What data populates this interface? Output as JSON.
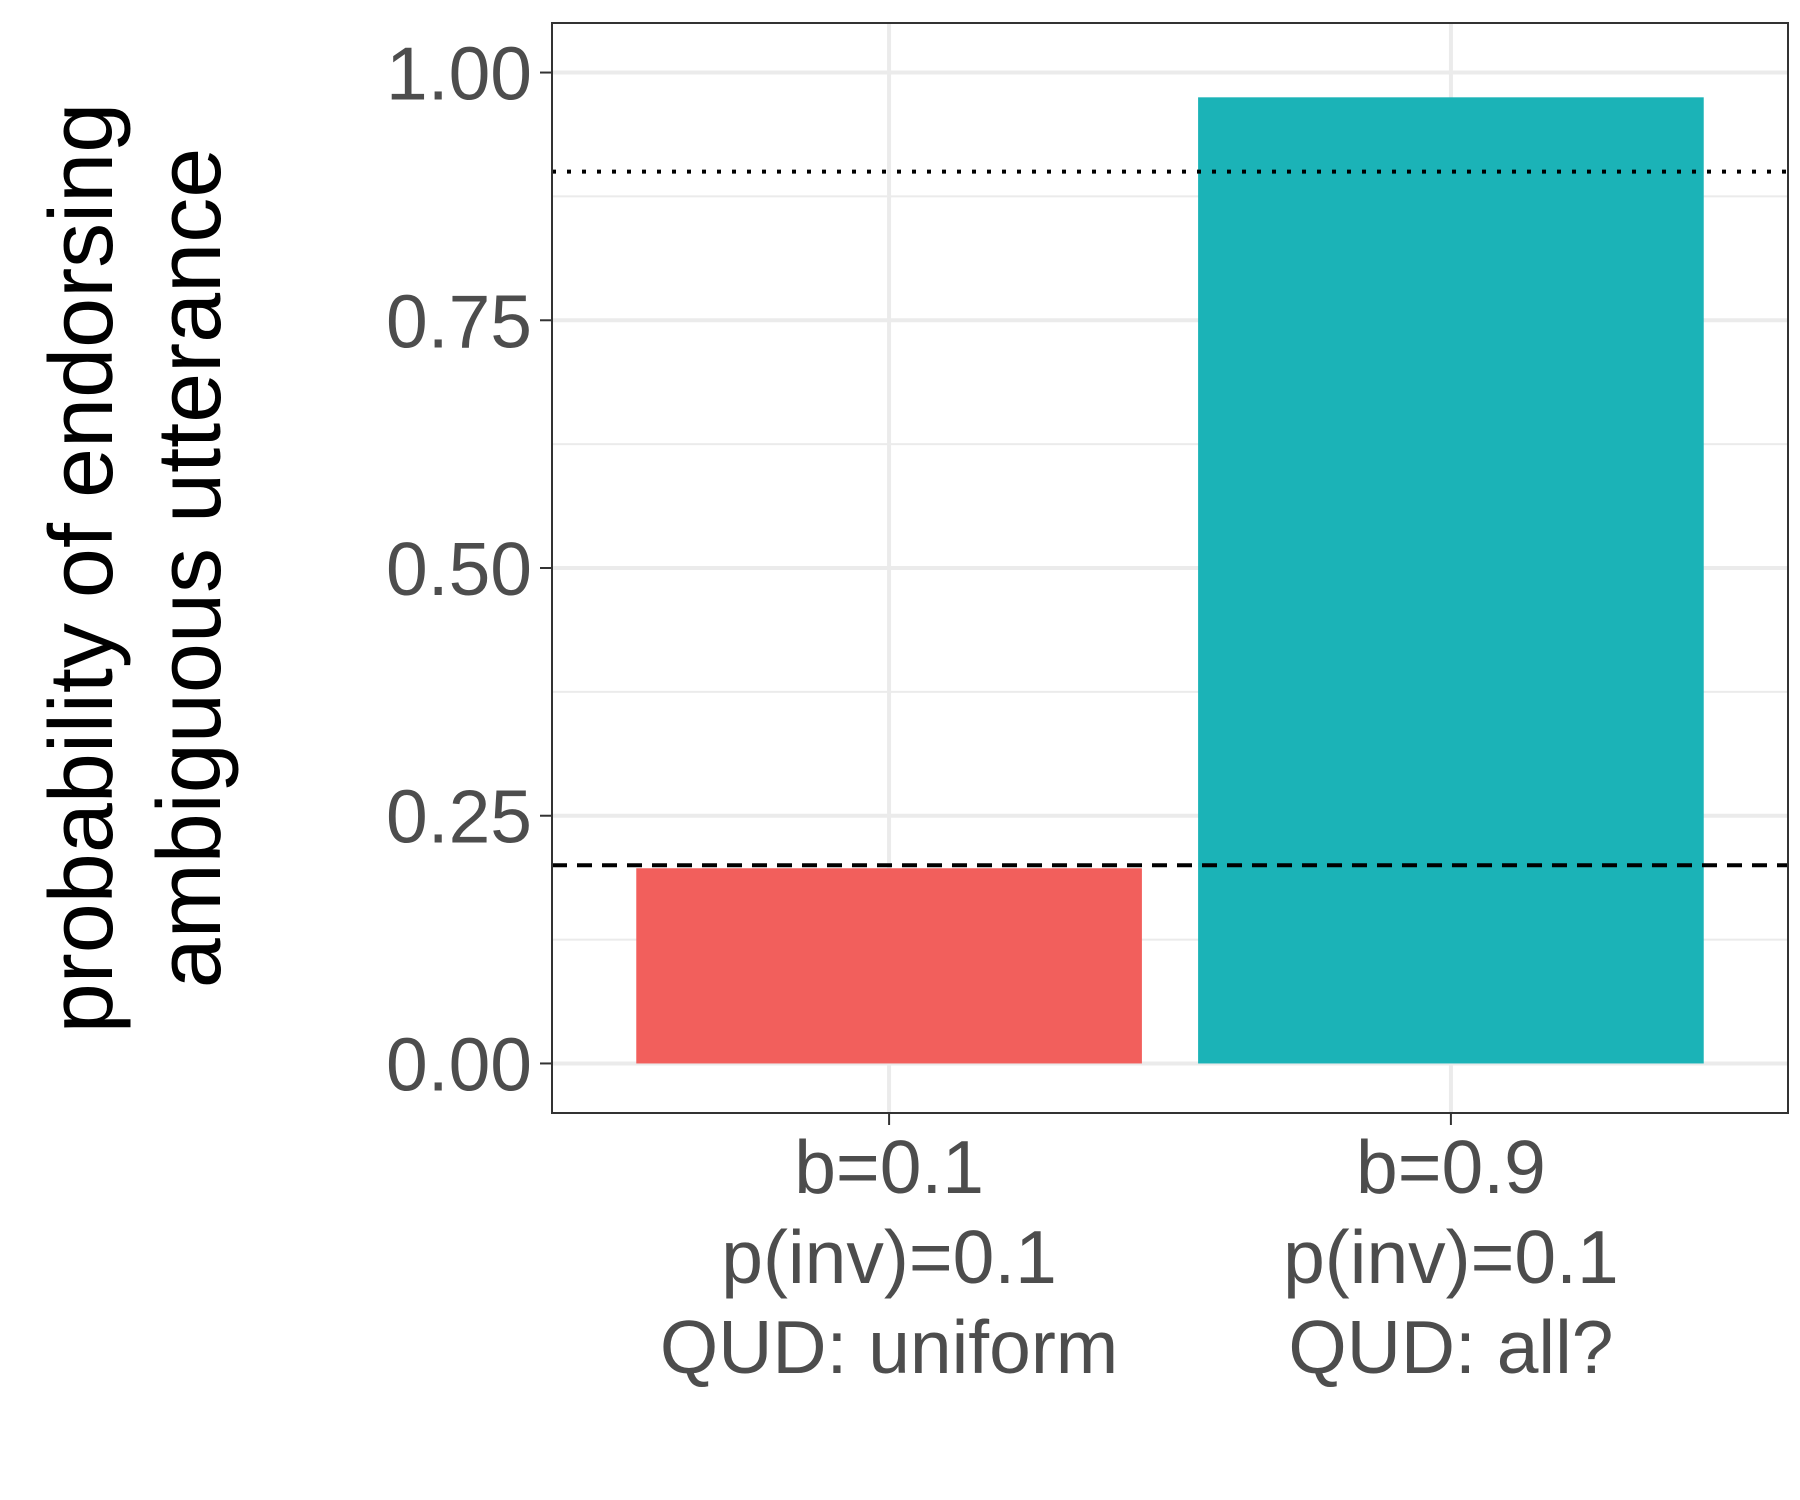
{
  "chart_data": {
    "type": "bar",
    "title": "",
    "xlabel": "",
    "ylabel": [
      "probability of endorsing",
      "ambiguous utterance"
    ],
    "categories": [
      [
        "b=0.1",
        "p(inv)=0.1",
        "QUD: uniform"
      ],
      [
        "b=0.9",
        "p(inv)=0.1",
        "QUD: all?"
      ]
    ],
    "values": [
      0.197,
      0.975
    ],
    "colors": [
      "#F25F5C",
      "#1BB3B7"
    ],
    "ylim": [
      -0.05,
      1.05
    ],
    "yticks": [
      0.0,
      0.25,
      0.5,
      0.75,
      1.0
    ],
    "ytick_labels": [
      "0.00",
      "0.25",
      "0.50",
      "0.75",
      "1.00"
    ],
    "reference_lines": [
      {
        "style": "dotted",
        "y": 0.9
      },
      {
        "style": "dashed",
        "y": 0.2
      }
    ],
    "grid": true,
    "legend": "none"
  }
}
